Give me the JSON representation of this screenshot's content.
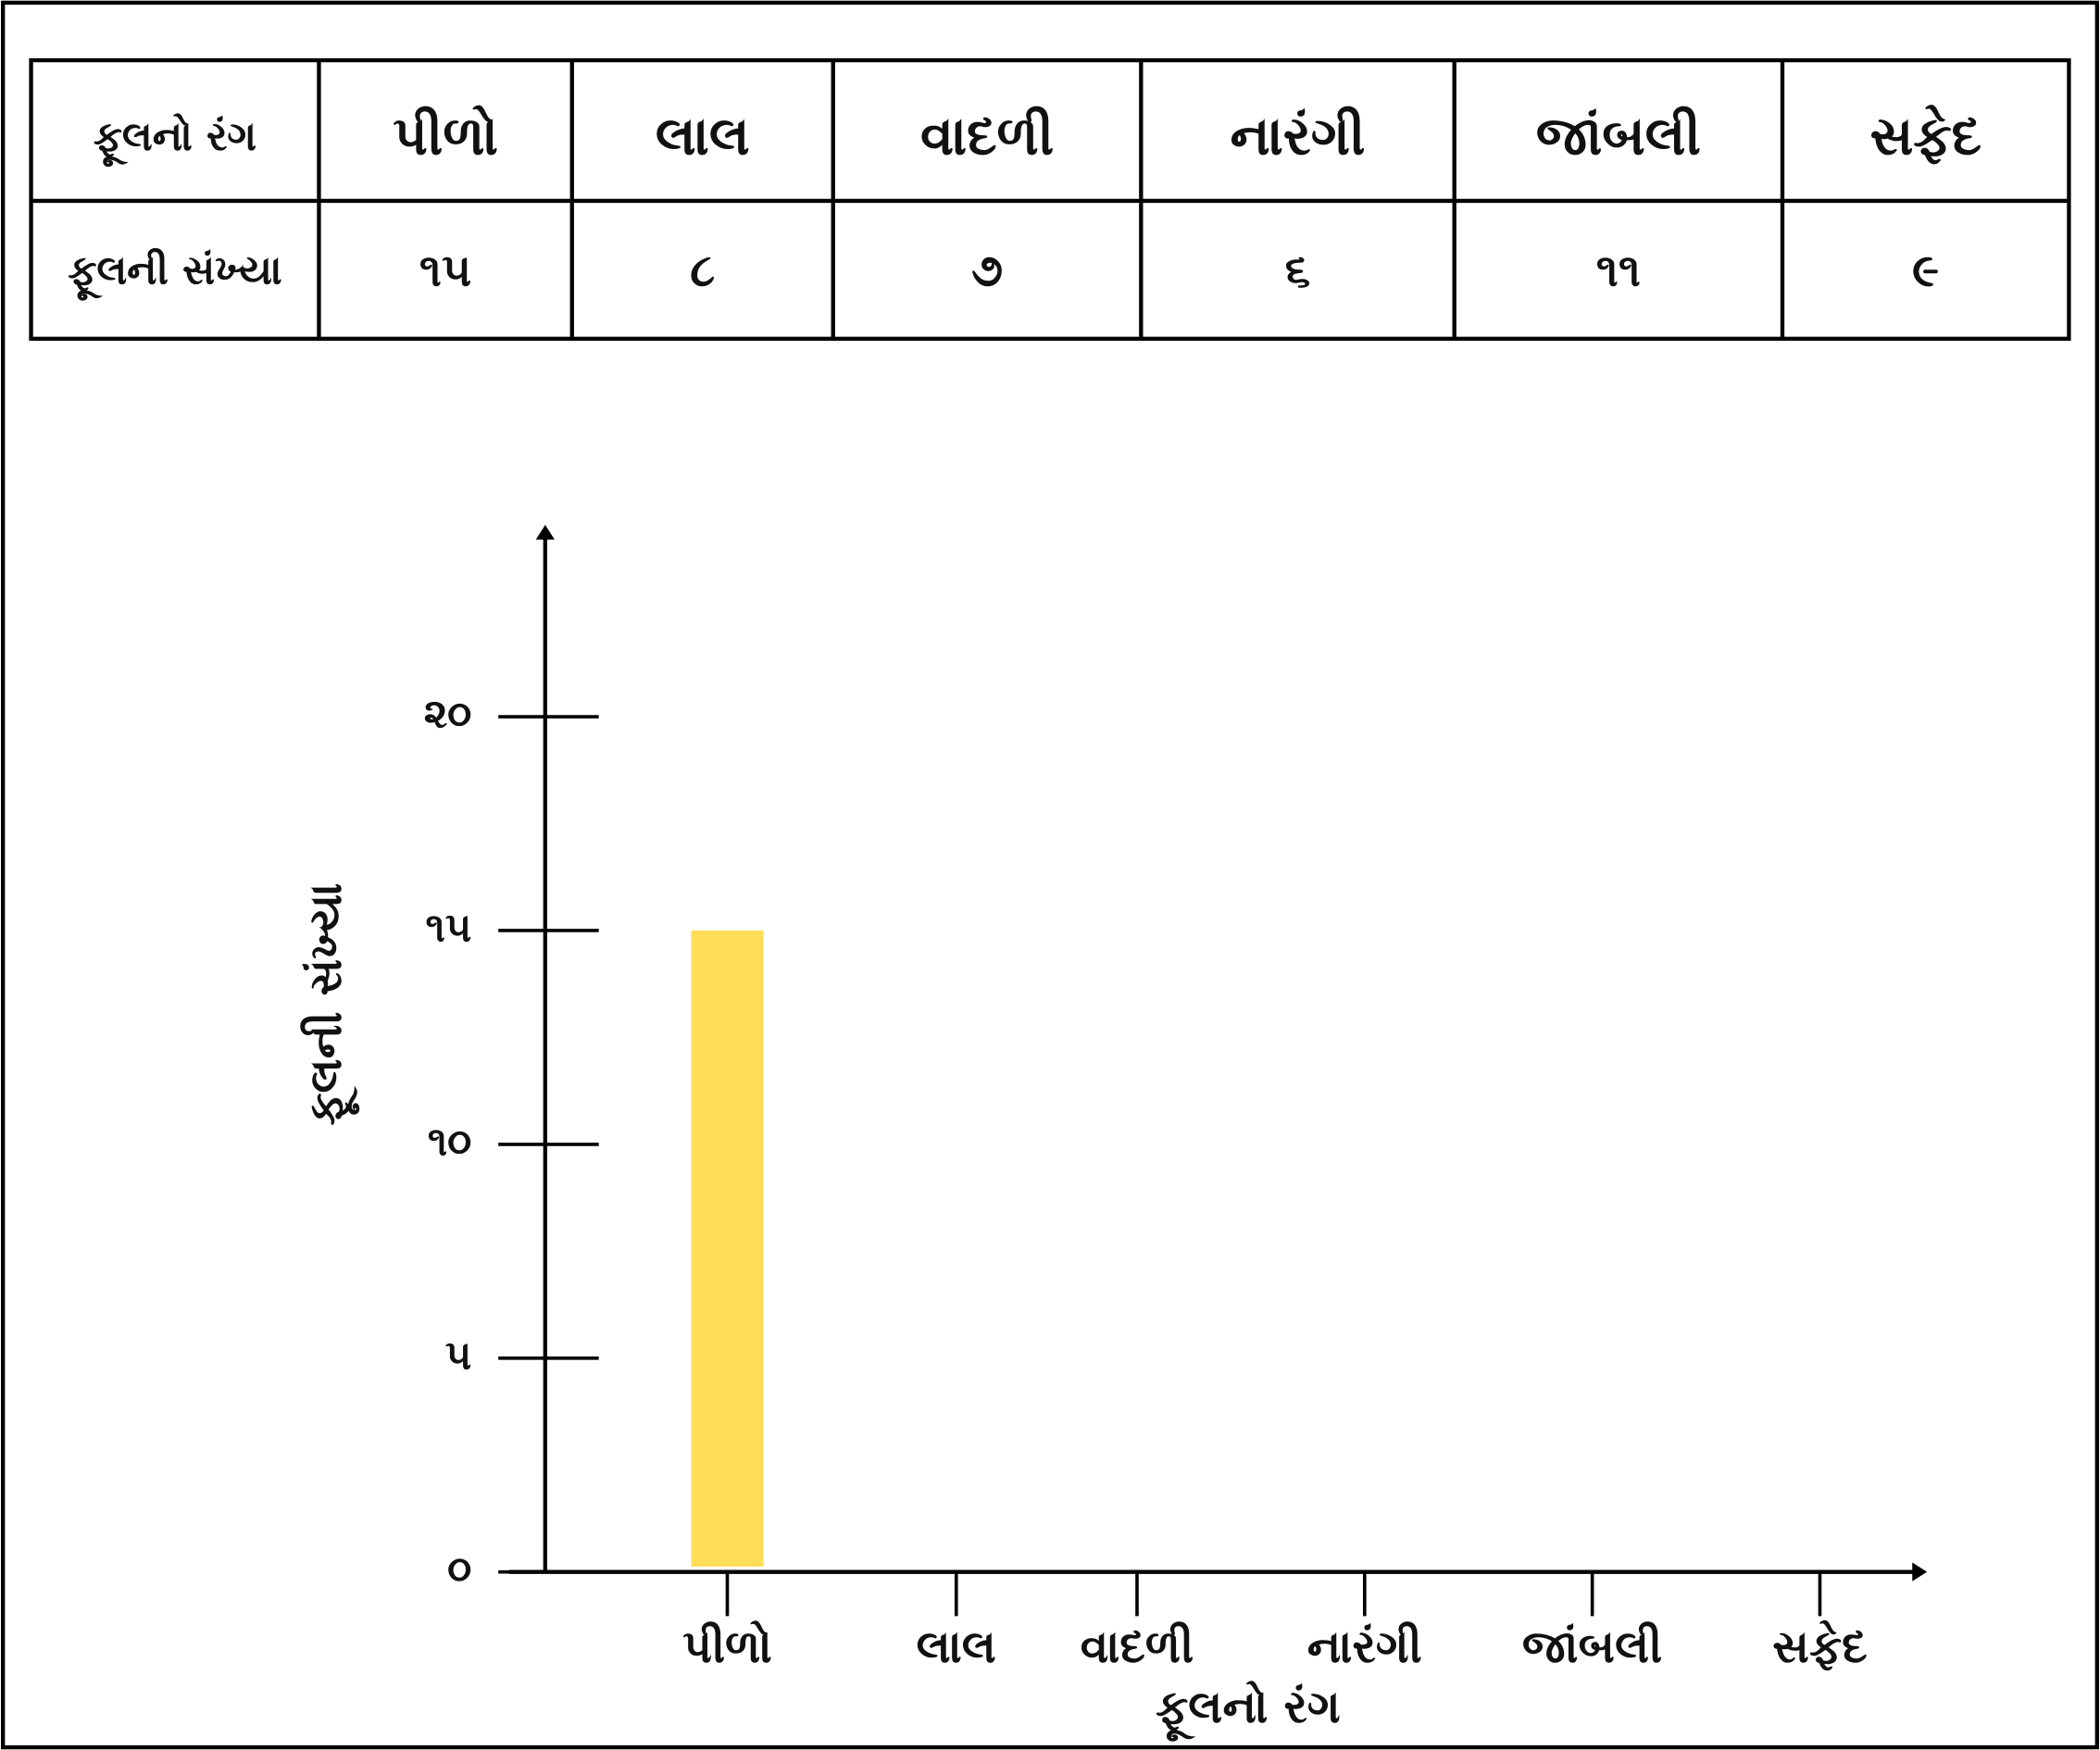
{
  "table": {
    "header": [
      "ફૂલનો રંગ",
      "પીળો",
      "લાલ",
      "વાદળી",
      "નારંગી",
      "જાંબલી",
      "સફેદ"
    ],
    "rows": [
      [
        "ફૂલની સંખ્યા",
        "૧૫",
        "૮",
        "૭",
        "૬",
        "૧૧",
        "૯"
      ]
    ]
  },
  "chart_data": {
    "type": "bar",
    "x_label": "ફૂલનો રંગ",
    "y_label": "ફૂલની સંખ્યા",
    "categories": [
      "પીળો",
      "લાલ",
      "વાદળી",
      "નારંગી",
      "જાંબલી",
      "સફેદ"
    ],
    "values": [
      15,
      null,
      null,
      null,
      null,
      null
    ],
    "color": "#ffdd57",
    "ylim": [
      0,
      24.3
    ],
    "yticks": [
      {
        "value": 0,
        "label": "૦"
      },
      {
        "value": 5,
        "label": "૫"
      },
      {
        "value": 10,
        "label": "૧૦"
      },
      {
        "value": 15,
        "label": "૧૫"
      },
      {
        "value": 20,
        "label": "૨૦"
      }
    ]
  }
}
